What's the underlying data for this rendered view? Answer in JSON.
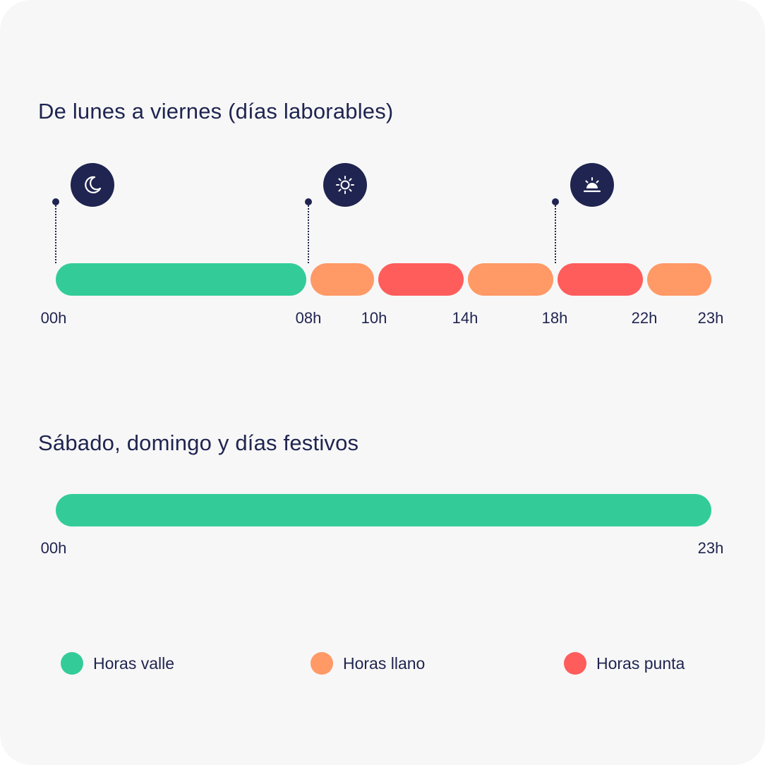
{
  "weekday": {
    "title": "De lunes a viernes (días laborables)",
    "segments": [
      {
        "from": 0,
        "to": 8,
        "type": "valle"
      },
      {
        "from": 8,
        "to": 10,
        "type": "llano"
      },
      {
        "from": 10,
        "to": 14,
        "type": "punta"
      },
      {
        "from": 14,
        "to": 18,
        "type": "llano"
      },
      {
        "from": 18,
        "to": 22,
        "type": "punta"
      },
      {
        "from": 22,
        "to": 23,
        "type": "llano"
      }
    ],
    "ticks": [
      "00h",
      "08h",
      "10h",
      "14h",
      "18h",
      "22h",
      "23h"
    ],
    "markers": [
      {
        "hour": 0,
        "icon": "moon-icon"
      },
      {
        "hour": 8,
        "icon": "sun-icon"
      },
      {
        "hour": 18,
        "icon": "sunset-icon"
      }
    ]
  },
  "weekend": {
    "title": "Sábado, domingo y días festivos",
    "segments": [
      {
        "from": 0,
        "to": 23,
        "type": "valle"
      }
    ],
    "ticks": [
      "00h",
      "23h"
    ]
  },
  "legend": [
    {
      "type": "valle",
      "label": "Horas valle"
    },
    {
      "type": "llano",
      "label": "Horas llano"
    },
    {
      "type": "punta",
      "label": "Horas punta"
    }
  ],
  "colors": {
    "valle": "#33cc99",
    "llano": "#ff9966",
    "punta": "#ff5c5c",
    "text": "#1f2450",
    "background": "#f7f7f7"
  }
}
